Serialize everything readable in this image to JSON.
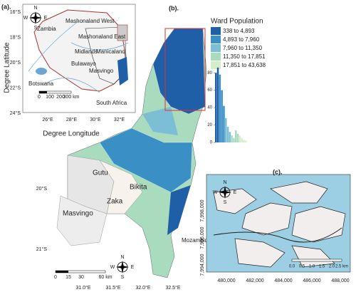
{
  "panel_a": {
    "label": "(a).",
    "ylabel": "Degree Latitude",
    "xlabel": "Degree Longitude",
    "yticks": [
      "16°S",
      "18°S",
      "20°S",
      "22°S",
      "24°S"
    ],
    "xticks": [
      "26°E",
      "28°E",
      "30°E",
      "32°E"
    ],
    "places": [
      "Zambia",
      "Mashonaland West",
      "Mashonaland East",
      "Midlands",
      "Manicaland",
      "Bulawayo",
      "Masvingo",
      "Botswana",
      "South Africa"
    ],
    "scale": [
      "0",
      "100",
      "200",
      "300 km"
    ],
    "compass": [
      "N",
      "W",
      "E",
      "S"
    ]
  },
  "panel_b": {
    "label": "(b).",
    "legend_title": "Ward Population",
    "legend": [
      {
        "label": "338 to 4,893",
        "color": "#1f5fa8"
      },
      {
        "label": "4,893 to 7,960",
        "color": "#3a8fc4"
      },
      {
        "label": "7,960 to 11,350",
        "color": "#7cbfd4"
      },
      {
        "label": "11,350 to 17,851",
        "color": "#a9dbbf"
      },
      {
        "label": "17,851 to 43,638",
        "color": "#d6eec8"
      }
    ],
    "histogram": {
      "ylim": [
        0,
        90
      ],
      "yticks": [
        0,
        20,
        40,
        60,
        80
      ],
      "counts": [
        80,
        86,
        78,
        60,
        42,
        28,
        18,
        12,
        8,
        5,
        14,
        10,
        8,
        5,
        3,
        2
      ],
      "colors": [
        "#1f5fa8",
        "#1f5fa8",
        "#3a8fc4",
        "#3a8fc4",
        "#3a8fc4",
        "#7cbfd4",
        "#7cbfd4",
        "#7cbfd4",
        "#a9dbbf",
        "#a9dbbf",
        "#a9dbbf",
        "#a9dbbf",
        "#d6eec8",
        "#d6eec8",
        "#d6eec8",
        "#d6eec8"
      ]
    },
    "places": [
      "Gutu",
      "Masvingo",
      "Zaka",
      "Bikita",
      "Mozambique"
    ],
    "yticks": [
      "20°S",
      "21°S"
    ],
    "xticks": [
      "31.0°E",
      "31.5°E",
      "32.0°E",
      "32.5°E"
    ],
    "scale": [
      "0",
      "15",
      "30",
      "60 km"
    ],
    "compass": [
      "N",
      "W",
      "E",
      "S"
    ]
  },
  "panel_c": {
    "label": "(c).",
    "yticks": [
      "7,998,000",
      "7,996,000",
      "7,994,000"
    ],
    "xticks": [
      "480,000",
      "482,000",
      "484,000",
      "486,000",
      "488,000"
    ],
    "scale": [
      "0.0",
      "0.5",
      "1.0",
      "1.5",
      "2.0",
      "2.5 km"
    ],
    "compass": [
      "N",
      "W",
      "E",
      "S"
    ]
  }
}
